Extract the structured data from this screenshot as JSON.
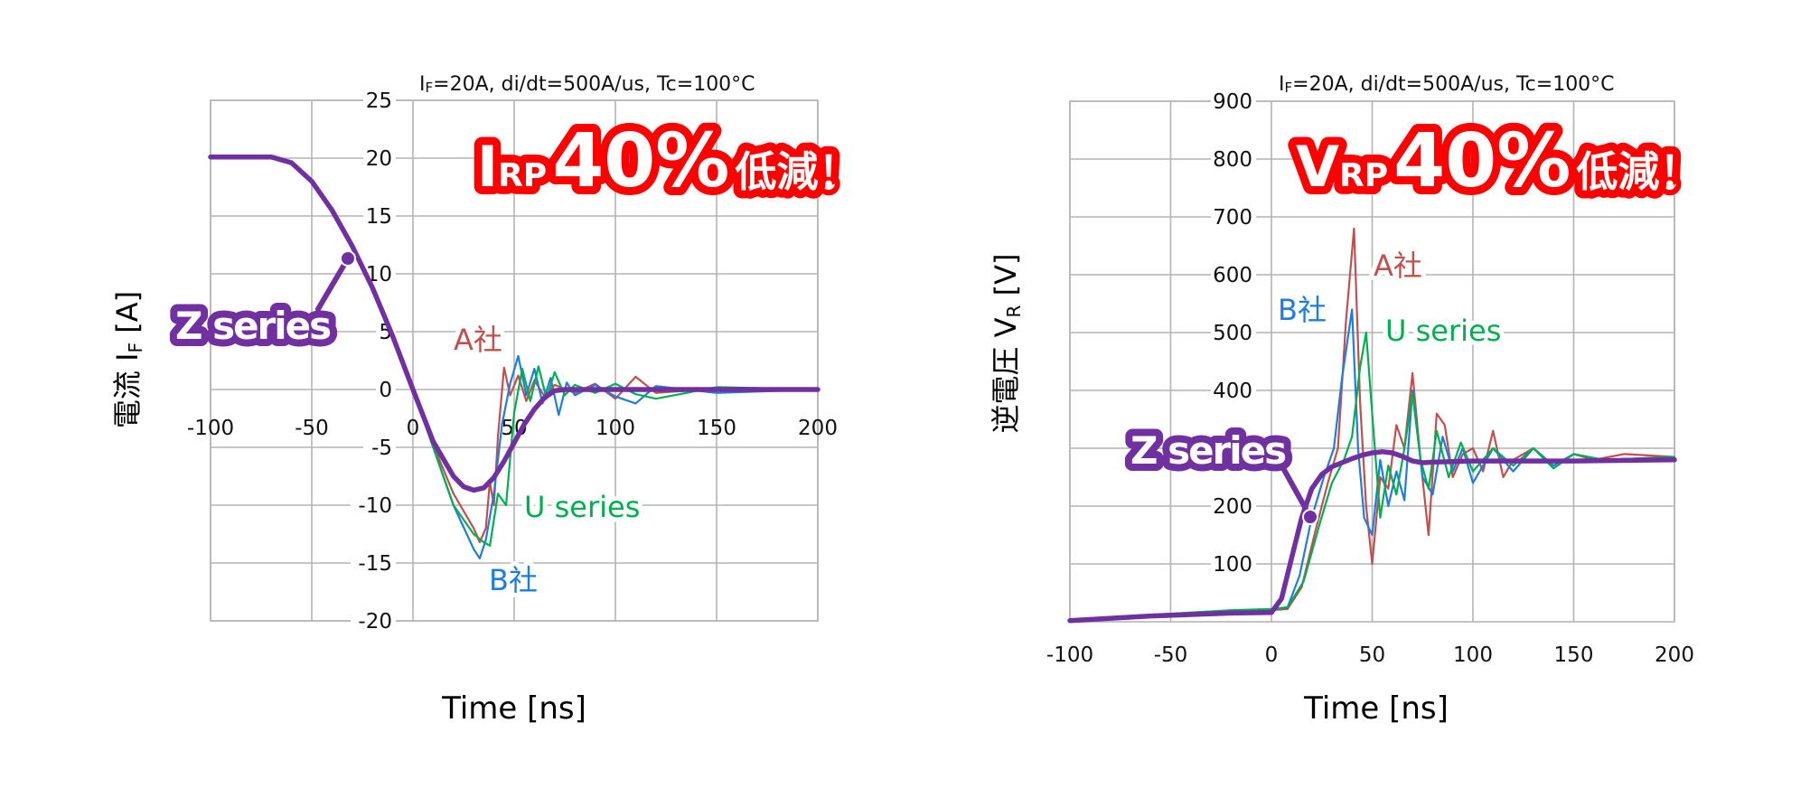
{
  "colors": {
    "a_company": "#C0504D",
    "b_company": "#1F7CE0",
    "u_series": "#00B050",
    "z_series": "#7030A0",
    "badge_red": "#FF0000",
    "grid": "#B4B4B4"
  },
  "chart_data": [
    {
      "type": "line",
      "title": "IF=20A, di/dt=500A/us, Tc=100°C",
      "condition_prefix": "I",
      "condition_sub": "F",
      "condition_rest": "=20A, di/dt=500A/us, Tc=100°C",
      "xlabel": "Time [ns]",
      "ylabel_main": "電流 I",
      "ylabel_sub": "F",
      "ylabel_unit": " [A]",
      "xlim": [
        -100,
        200
      ],
      "ylim": [
        -20,
        25
      ],
      "xticks": [
        -100,
        -50,
        0,
        50,
        100,
        150,
        200
      ],
      "yticks": [
        25,
        20,
        15,
        10,
        5,
        0,
        -5,
        -10,
        -15,
        -20
      ],
      "grid": true,
      "annotation": {
        "symbol": "I",
        "sub": "RP",
        "value": "40%",
        "suffix": "低減！",
        "full": "IRP 40% 低減！"
      },
      "series": [
        {
          "name": "A社",
          "color_key": "a_company",
          "x": [
            -100,
            -70,
            -60,
            -50,
            -40,
            -30,
            -20,
            -10,
            0,
            10,
            20,
            30,
            33,
            36,
            38,
            40,
            42,
            45,
            48,
            52,
            56,
            60,
            65,
            70,
            80,
            90,
            100,
            110,
            120,
            150,
            200
          ],
          "y": [
            20.1,
            20.1,
            19.6,
            18,
            15.5,
            12.4,
            8.8,
            4.6,
            0,
            -4.8,
            -9,
            -12,
            -13.2,
            -12,
            -8,
            -10,
            -4,
            1.9,
            -0.5,
            1.2,
            -1,
            0.8,
            -0.6,
            0.4,
            -0.3,
            0.5,
            -0.8,
            1.1,
            -0.3,
            0.1,
            0
          ]
        },
        {
          "name": "B社",
          "color_key": "b_company",
          "x": [
            -100,
            -70,
            -60,
            -50,
            -40,
            -30,
            -20,
            -10,
            0,
            10,
            20,
            30,
            33,
            36,
            40,
            44,
            48,
            52,
            56,
            60,
            64,
            68,
            72,
            76,
            80,
            90,
            100,
            110,
            120,
            150,
            200
          ],
          "y": [
            20.1,
            20.1,
            19.6,
            18,
            15.5,
            12.4,
            8.8,
            4.6,
            0,
            -5,
            -10,
            -13.8,
            -14.6,
            -13,
            -9,
            -3,
            0.5,
            2.9,
            -0.5,
            1.8,
            -1.2,
            1,
            -2.2,
            0.6,
            -0.5,
            0.4,
            -0.6,
            -1.2,
            0.3,
            -0.3,
            0
          ]
        },
        {
          "name": "U series",
          "color_key": "u_series",
          "x": [
            -100,
            -70,
            -60,
            -50,
            -40,
            -30,
            -20,
            -10,
            0,
            10,
            20,
            30,
            35,
            38,
            42,
            46,
            50,
            54,
            58,
            62,
            66,
            70,
            75,
            80,
            90,
            100,
            110,
            120,
            150,
            200
          ],
          "y": [
            20.2,
            20.2,
            19.6,
            18,
            15.5,
            12.4,
            8.8,
            4.6,
            0,
            -5,
            -10,
            -12.5,
            -13.2,
            -13.5,
            -9,
            -10,
            -2,
            1.8,
            -1,
            2,
            -0.8,
            1.5,
            -0.5,
            0.4,
            -0.3,
            0.5,
            -0.4,
            -0.8,
            0.2,
            0
          ]
        },
        {
          "name": "Z series",
          "color_key": "z_series",
          "x": [
            -100,
            -70,
            -60,
            -50,
            -40,
            -30,
            -20,
            -10,
            0,
            10,
            20,
            25,
            30,
            35,
            40,
            45,
            50,
            55,
            60,
            65,
            70,
            75,
            100,
            150,
            200
          ],
          "y": [
            20.1,
            20.1,
            19.6,
            18,
            15.5,
            12.4,
            8.8,
            4.6,
            0,
            -4.5,
            -7.5,
            -8.4,
            -8.7,
            -8.5,
            -7.6,
            -6.2,
            -4.6,
            -3,
            -1.7,
            -0.7,
            -0.1,
            0,
            0,
            0,
            0
          ]
        }
      ],
      "labels": [
        {
          "text": "A社",
          "color_key": "a_company"
        },
        {
          "text": "B社",
          "color_key": "b_company"
        },
        {
          "text": "U series",
          "color_key": "u_series"
        },
        {
          "text": "Z series",
          "color_key": "z_series"
        }
      ]
    },
    {
      "type": "line",
      "title": "IF=20A, di/dt=500A/us, Tc=100°C",
      "condition_prefix": "I",
      "condition_sub": "F",
      "condition_rest": "=20A, di/dt=500A/us, Tc=100°C",
      "xlabel": "Time [ns]",
      "ylabel_main": "逆電圧 V",
      "ylabel_sub": "R",
      "ylabel_unit": " [V]",
      "xlim": [
        -100,
        200
      ],
      "ylim": [
        0,
        900
      ],
      "xticks": [
        -100,
        -50,
        0,
        50,
        100,
        150,
        200
      ],
      "yticks": [
        900,
        800,
        700,
        600,
        500,
        400,
        300,
        200,
        100
      ],
      "ytick_labels": [
        "900",
        "800",
        "700",
        "600",
        "500",
        "400",
        "",
        "200",
        "100"
      ],
      "grid": true,
      "annotation": {
        "symbol": "V",
        "sub": "RP",
        "value": "40%",
        "suffix": "低減！",
        "full": "VRP 40% 低減！"
      },
      "series": [
        {
          "name": "A社",
          "color_key": "a_company",
          "x": [
            -100,
            -60,
            -20,
            0,
            8,
            15,
            22,
            28,
            33,
            37,
            41,
            44,
            47,
            50,
            54,
            58,
            62,
            66,
            70,
            74,
            78,
            82,
            86,
            90,
            95,
            100,
            105,
            110,
            115,
            120,
            130,
            140,
            150,
            160,
            175,
            200
          ],
          "y": [
            2,
            10,
            18,
            20,
            22,
            60,
            160,
            240,
            300,
            520,
            680,
            380,
            200,
            100,
            250,
            230,
            340,
            300,
            430,
            280,
            150,
            360,
            340,
            250,
            290,
            300,
            260,
            330,
            250,
            280,
            300,
            270,
            290,
            280,
            290,
            285
          ]
        },
        {
          "name": "B社",
          "color_key": "b_company",
          "x": [
            -100,
            -60,
            -20,
            0,
            8,
            14,
            20,
            26,
            31,
            35,
            40,
            43,
            46,
            50,
            54,
            58,
            62,
            66,
            70,
            75,
            80,
            85,
            90,
            95,
            100,
            110,
            120,
            130,
            140,
            150,
            165,
            200
          ],
          "y": [
            2,
            10,
            18,
            20,
            25,
            80,
            180,
            250,
            300,
            420,
            540,
            300,
            180,
            150,
            280,
            200,
            260,
            210,
            400,
            250,
            220,
            320,
            260,
            300,
            240,
            300,
            260,
            300,
            270,
            290,
            280,
            285
          ]
        },
        {
          "name": "U series",
          "color_key": "u_series",
          "x": [
            -100,
            -60,
            -20,
            0,
            8,
            16,
            24,
            30,
            36,
            40,
            44,
            47,
            50,
            54,
            58,
            62,
            66,
            70,
            74,
            78,
            82,
            88,
            94,
            100,
            110,
            120,
            130,
            140,
            150,
            165,
            200
          ],
          "y": [
            2,
            12,
            20,
            22,
            25,
            70,
            170,
            240,
            280,
            320,
            440,
            500,
            360,
            180,
            270,
            220,
            300,
            395,
            280,
            230,
            330,
            250,
            310,
            260,
            300,
            270,
            300,
            265,
            290,
            280,
            285
          ]
        },
        {
          "name": "Z series",
          "color_key": "z_series",
          "x": [
            -100,
            -60,
            -20,
            0,
            5,
            10,
            15,
            20,
            25,
            30,
            35,
            40,
            45,
            50,
            55,
            60,
            65,
            70,
            75,
            80,
            90,
            100,
            150,
            200
          ],
          "y": [
            2,
            10,
            15,
            16,
            40,
            110,
            180,
            230,
            255,
            268,
            275,
            282,
            288,
            292,
            294,
            292,
            286,
            278,
            275,
            276,
            277,
            278,
            278,
            280
          ]
        }
      ],
      "labels": [
        {
          "text": "A社",
          "color_key": "a_company"
        },
        {
          "text": "B社",
          "color_key": "b_company"
        },
        {
          "text": "U series",
          "color_key": "u_series"
        },
        {
          "text": "Z series",
          "color_key": "z_series"
        }
      ]
    }
  ]
}
